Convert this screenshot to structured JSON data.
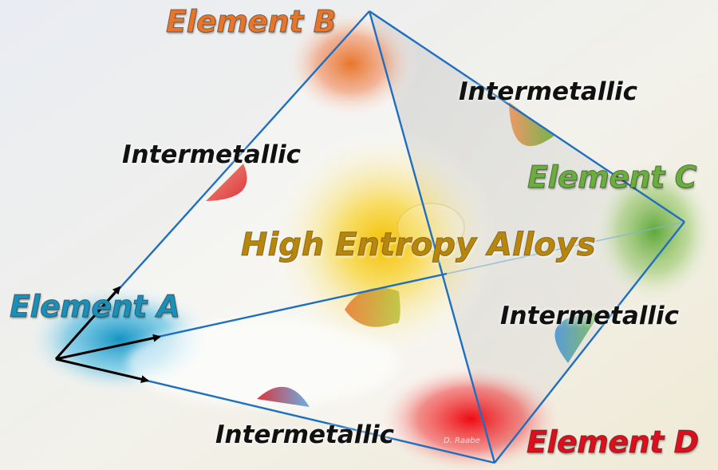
{
  "labels": {
    "element_a": "Element A",
    "element_b": "Element B",
    "element_c": "Element C",
    "element_d": "Element D",
    "center": "High Entropy Alloys",
    "intermetallic": "Intermetallic",
    "credit": "D. Raabe"
  },
  "colors": {
    "element_a": "#1a8fb8",
    "element_b": "#e8762a",
    "element_c": "#6aae3c",
    "element_d": "#e00d1a",
    "center_glow": "#f3c21a",
    "edge": "#1f6fc0",
    "arrow": "#000000"
  }
}
